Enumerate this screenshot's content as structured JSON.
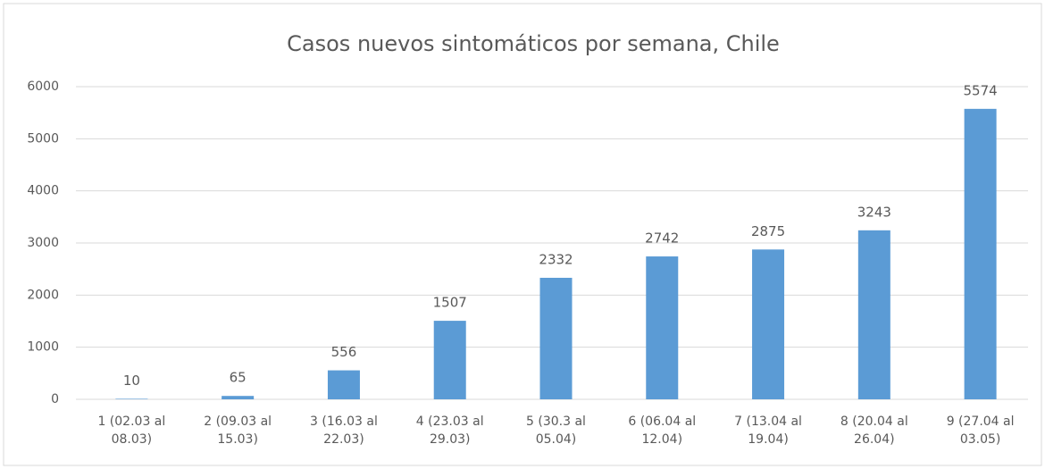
{
  "chart_data": {
    "type": "bar",
    "title": "Casos nuevos sintomáticos por semana, Chile",
    "categories": [
      "1 (02.03 al 08.03)",
      "2 (09.03 al 15.03)",
      "3 (16.03 al 22.03)",
      "4 (23.03 al 29.03)",
      "5 (30.3 al 05.04)",
      "6 (06.04 al 12.04)",
      "7 (13.04 al 19.04)",
      "8 (20.04 al 26.04)",
      "9 (27.04 al 03.05)"
    ],
    "values": [
      10,
      65,
      556,
      1507,
      2332,
      2742,
      2875,
      3243,
      5574
    ],
    "color": "#5b9bd5",
    "ylim": [
      0,
      6000
    ],
    "yticks": [
      0,
      1000,
      2000,
      3000,
      4000,
      5000,
      6000
    ],
    "grid": true
  }
}
